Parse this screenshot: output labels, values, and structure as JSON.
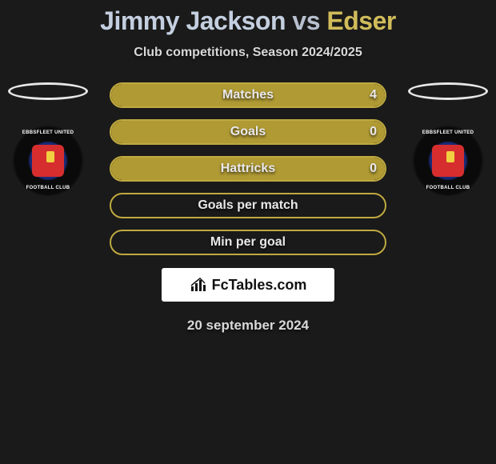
{
  "title": {
    "player1": "Jimmy Jackson",
    "vs": "vs",
    "player2": "Edser",
    "player1_color": "#c4cfe0",
    "player2_color": "#d0bc5a"
  },
  "subtitle": "Club competitions, Season 2024/2025",
  "club_badge": {
    "text_top": "EBBSFLEET UNITED",
    "text_bottom": "FOOTBALL CLUB"
  },
  "bars": {
    "track_width": 346,
    "track_height": 32,
    "border_radius": 16,
    "gap": 14,
    "label_color": "#e8e8ea",
    "label_fontsize": 16,
    "rows": [
      {
        "label": "Matches",
        "fill_pct": 100,
        "value_right": "4",
        "fill_color": "#b09a34",
        "border_color": "#bfa93f"
      },
      {
        "label": "Goals",
        "fill_pct": 100,
        "value_right": "0",
        "fill_color": "#b09a34",
        "border_color": "#bfa93f"
      },
      {
        "label": "Hattricks",
        "fill_pct": 100,
        "value_right": "0",
        "fill_color": "#b09a34",
        "border_color": "#bfa93f"
      },
      {
        "label": "Goals per match",
        "fill_pct": 0,
        "value_right": "",
        "fill_color": "#b09a34",
        "border_color": "#bfa93f"
      },
      {
        "label": "Min per goal",
        "fill_pct": 0,
        "value_right": "",
        "fill_color": "#b09a34",
        "border_color": "#bfa93f"
      }
    ]
  },
  "ellipse": {
    "border_color": "#e8e8e8"
  },
  "attribution": {
    "text": "FcTables.com",
    "background": "#ffffff"
  },
  "date": "20 september 2024",
  "background_color": "#1a1a1a"
}
